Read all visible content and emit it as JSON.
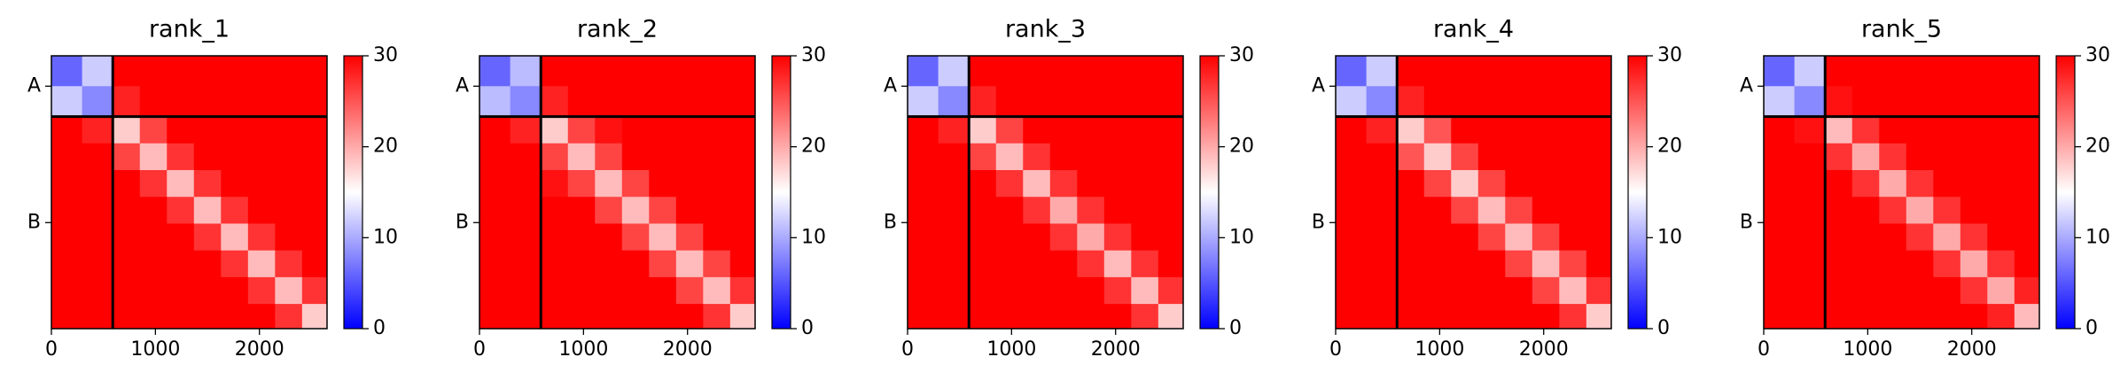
{
  "chart_data": [
    {
      "type": "heatmap",
      "title": "rank_1",
      "colormap": "bwr",
      "clim": [
        0,
        30
      ],
      "cticks": [
        0,
        10,
        20,
        30
      ],
      "xlim": [
        0,
        2650
      ],
      "xticks": [
        0,
        1000,
        2000
      ],
      "ylim": [
        2650,
        0
      ],
      "yticks": [
        {
          "value": 295,
          "label": "A"
        },
        {
          "value": 1620,
          "label": "B"
        }
      ],
      "chain_breaks": [
        590
      ],
      "bins": [
        0,
        295,
        590,
        850,
        1110,
        1370,
        1630,
        1890,
        2150,
        2410,
        2650
      ],
      "values": [
        [
          6,
          12,
          30,
          30,
          30,
          30,
          30,
          30,
          30,
          30
        ],
        [
          12,
          8,
          28,
          30,
          30,
          30,
          30,
          30,
          30,
          30
        ],
        [
          30,
          28,
          18,
          26,
          30,
          30,
          30,
          30,
          30,
          30
        ],
        [
          30,
          30,
          26,
          19,
          27,
          30,
          30,
          30,
          30,
          30
        ],
        [
          30,
          30,
          30,
          27,
          19,
          27,
          30,
          30,
          30,
          30
        ],
        [
          30,
          30,
          30,
          30,
          27,
          19,
          27,
          30,
          30,
          30
        ],
        [
          30,
          30,
          30,
          30,
          30,
          27,
          19,
          27,
          30,
          30
        ],
        [
          30,
          30,
          30,
          30,
          30,
          30,
          27,
          19,
          27,
          30
        ],
        [
          30,
          30,
          30,
          30,
          30,
          30,
          30,
          27,
          19,
          27
        ],
        [
          30,
          30,
          30,
          30,
          30,
          30,
          30,
          30,
          27,
          18
        ]
      ]
    },
    {
      "type": "heatmap",
      "title": "rank_2",
      "colormap": "bwr",
      "clim": [
        0,
        30
      ],
      "cticks": [
        0,
        10,
        20,
        30
      ],
      "xlim": [
        0,
        2650
      ],
      "xticks": [
        0,
        1000,
        2000
      ],
      "ylim": [
        2650,
        0
      ],
      "yticks": [
        {
          "value": 295,
          "label": "A"
        },
        {
          "value": 1620,
          "label": "B"
        }
      ],
      "chain_breaks": [
        590
      ],
      "bins": [
        0,
        295,
        590,
        850,
        1110,
        1370,
        1630,
        1890,
        2150,
        2410,
        2650
      ],
      "values": [
        [
          6,
          11,
          30,
          30,
          30,
          30,
          30,
          30,
          30,
          30
        ],
        [
          11,
          8,
          28,
          30,
          30,
          30,
          30,
          30,
          30,
          30
        ],
        [
          30,
          28,
          18,
          26,
          29,
          30,
          30,
          30,
          30,
          30
        ],
        [
          30,
          30,
          26,
          19,
          26,
          30,
          30,
          30,
          30,
          30
        ],
        [
          30,
          30,
          29,
          26,
          19,
          26,
          30,
          30,
          30,
          30
        ],
        [
          30,
          30,
          30,
          30,
          26,
          19,
          26,
          30,
          30,
          30
        ],
        [
          30,
          30,
          30,
          30,
          30,
          26,
          19,
          26,
          30,
          30
        ],
        [
          30,
          30,
          30,
          30,
          30,
          30,
          26,
          19,
          26,
          30
        ],
        [
          30,
          30,
          30,
          30,
          30,
          30,
          30,
          26,
          19,
          27
        ],
        [
          30,
          30,
          30,
          30,
          30,
          30,
          30,
          30,
          27,
          18
        ]
      ]
    },
    {
      "type": "heatmap",
      "title": "rank_3",
      "colormap": "bwr",
      "clim": [
        0,
        30
      ],
      "cticks": [
        0,
        10,
        20,
        30
      ],
      "xlim": [
        0,
        2650
      ],
      "xticks": [
        0,
        1000,
        2000
      ],
      "ylim": [
        2650,
        0
      ],
      "yticks": [
        {
          "value": 295,
          "label": "A"
        },
        {
          "value": 1620,
          "label": "B"
        }
      ],
      "chain_breaks": [
        590
      ],
      "bins": [
        0,
        295,
        590,
        850,
        1110,
        1370,
        1630,
        1890,
        2150,
        2410,
        2650
      ],
      "values": [
        [
          6,
          12,
          30,
          30,
          30,
          30,
          30,
          30,
          30,
          30
        ],
        [
          12,
          8,
          28,
          30,
          30,
          30,
          30,
          30,
          30,
          30
        ],
        [
          30,
          28,
          18,
          26,
          30,
          30,
          30,
          30,
          30,
          30
        ],
        [
          30,
          30,
          26,
          19,
          27,
          30,
          30,
          30,
          30,
          30
        ],
        [
          30,
          30,
          30,
          27,
          19,
          27,
          30,
          30,
          30,
          30
        ],
        [
          30,
          30,
          30,
          30,
          27,
          20,
          27,
          30,
          30,
          30
        ],
        [
          30,
          30,
          30,
          30,
          30,
          27,
          20,
          27,
          30,
          30
        ],
        [
          30,
          30,
          30,
          30,
          30,
          30,
          27,
          19,
          27,
          30
        ],
        [
          30,
          30,
          30,
          30,
          30,
          30,
          30,
          27,
          19,
          27
        ],
        [
          30,
          30,
          30,
          30,
          30,
          30,
          30,
          30,
          27,
          18
        ]
      ]
    },
    {
      "type": "heatmap",
      "title": "rank_4",
      "colormap": "bwr",
      "clim": [
        0,
        30
      ],
      "cticks": [
        0,
        10,
        20,
        30
      ],
      "xlim": [
        0,
        2650
      ],
      "xticks": [
        0,
        1000,
        2000
      ],
      "ylim": [
        2650,
        0
      ],
      "yticks": [
        {
          "value": 295,
          "label": "A"
        },
        {
          "value": 1620,
          "label": "B"
        }
      ],
      "chain_breaks": [
        590
      ],
      "bins": [
        0,
        295,
        590,
        850,
        1110,
        1370,
        1630,
        1890,
        2150,
        2410,
        2650
      ],
      "values": [
        [
          6,
          12,
          30,
          30,
          30,
          30,
          30,
          30,
          30,
          30
        ],
        [
          12,
          8,
          28,
          30,
          30,
          30,
          30,
          30,
          30,
          30
        ],
        [
          30,
          28,
          18,
          25,
          30,
          30,
          30,
          30,
          30,
          30
        ],
        [
          30,
          30,
          25,
          18,
          26,
          30,
          30,
          30,
          30,
          30
        ],
        [
          30,
          30,
          30,
          26,
          18,
          26,
          30,
          30,
          30,
          30
        ],
        [
          30,
          30,
          30,
          30,
          26,
          19,
          26,
          30,
          30,
          30
        ],
        [
          30,
          30,
          30,
          30,
          30,
          26,
          19,
          26,
          30,
          30
        ],
        [
          30,
          30,
          30,
          30,
          30,
          30,
          26,
          19,
          26,
          30
        ],
        [
          30,
          30,
          30,
          30,
          30,
          30,
          30,
          26,
          19,
          27
        ],
        [
          30,
          30,
          30,
          30,
          30,
          30,
          30,
          30,
          27,
          18
        ]
      ]
    },
    {
      "type": "heatmap",
      "title": "rank_5",
      "colormap": "bwr",
      "clim": [
        0,
        30
      ],
      "cticks": [
        0,
        10,
        20,
        30
      ],
      "xlim": [
        0,
        2650
      ],
      "xticks": [
        0,
        1000,
        2000
      ],
      "ylim": [
        2650,
        0
      ],
      "yticks": [
        {
          "value": 295,
          "label": "A"
        },
        {
          "value": 1620,
          "label": "B"
        }
      ],
      "chain_breaks": [
        590
      ],
      "bins": [
        0,
        295,
        590,
        850,
        1110,
        1370,
        1630,
        1890,
        2150,
        2410,
        2650
      ],
      "values": [
        [
          6,
          12,
          30,
          30,
          30,
          30,
          30,
          30,
          30,
          30
        ],
        [
          12,
          8,
          29,
          30,
          30,
          30,
          30,
          30,
          30,
          30
        ],
        [
          30,
          29,
          19,
          27,
          30,
          30,
          30,
          30,
          30,
          30
        ],
        [
          30,
          30,
          27,
          20,
          27,
          30,
          30,
          30,
          30,
          30
        ],
        [
          30,
          30,
          30,
          27,
          20,
          27,
          30,
          30,
          30,
          30
        ],
        [
          30,
          30,
          30,
          30,
          27,
          20,
          27,
          30,
          30,
          30
        ],
        [
          30,
          30,
          30,
          30,
          30,
          27,
          20,
          27,
          30,
          30
        ],
        [
          30,
          30,
          30,
          30,
          30,
          30,
          27,
          20,
          27,
          30
        ],
        [
          30,
          30,
          30,
          30,
          30,
          30,
          30,
          27,
          20,
          28
        ],
        [
          30,
          30,
          30,
          30,
          30,
          30,
          30,
          30,
          28,
          19
        ]
      ]
    }
  ]
}
